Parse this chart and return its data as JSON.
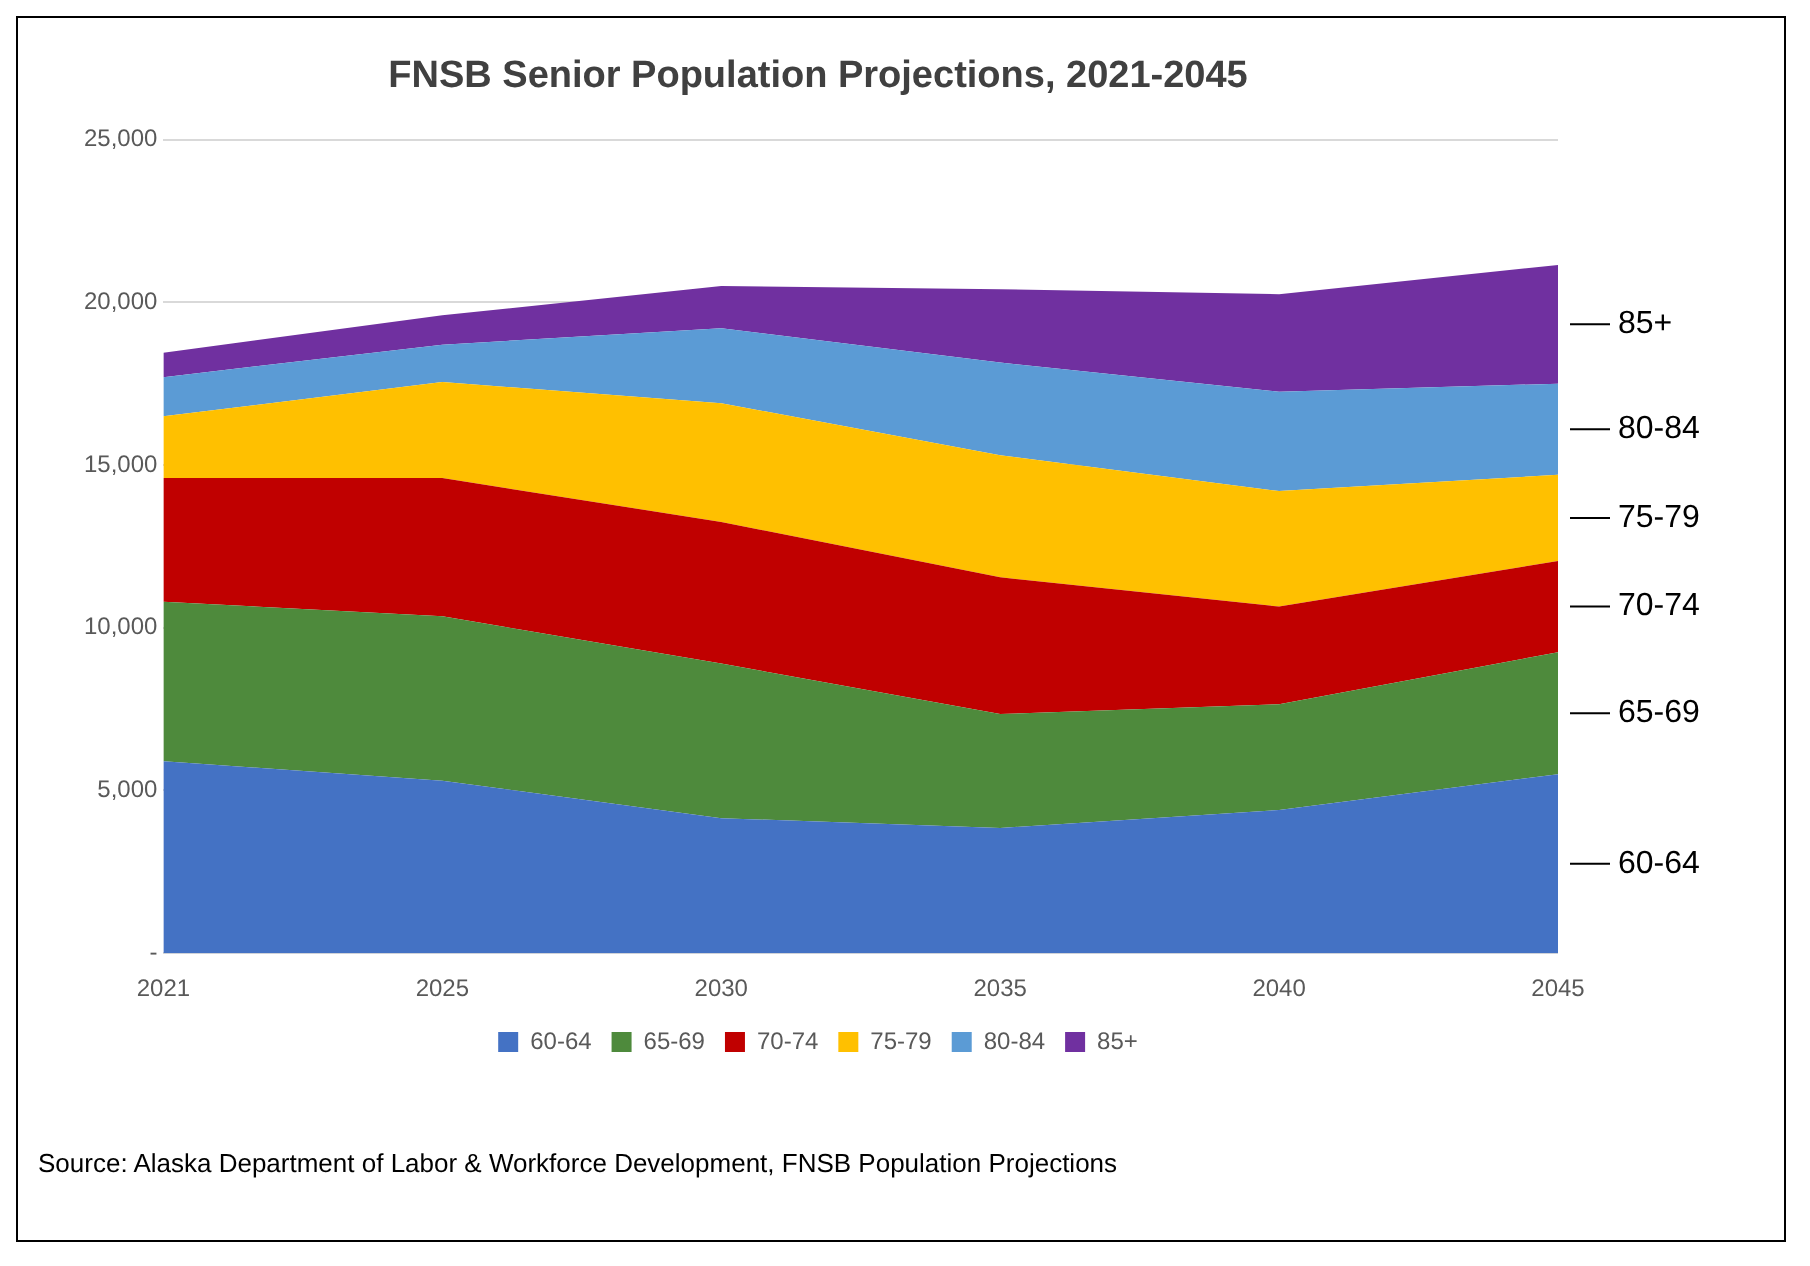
{
  "chart_data": {
    "type": "area",
    "stacked": true,
    "title": "FNSB Senior Population Projections, 2021-2045",
    "categories": [
      "2021",
      "2025",
      "2030",
      "2035",
      "2040",
      "2045"
    ],
    "series": [
      {
        "name": "60-64",
        "color": "#4472c4",
        "values": [
          5900,
          5300,
          4150,
          3850,
          4400,
          5500
        ]
      },
      {
        "name": "65-69",
        "color": "#4e8a3c",
        "values": [
          4900,
          5050,
          4750,
          3500,
          3250,
          3750
        ]
      },
      {
        "name": "70-74",
        "color": "#c00000",
        "values": [
          3800,
          4250,
          4350,
          4200,
          3000,
          2800
        ]
      },
      {
        "name": "75-79",
        "color": "#ffc000",
        "values": [
          1900,
          2950,
          3650,
          3750,
          3550,
          2650
        ]
      },
      {
        "name": "80-84",
        "color": "#5b9bd5",
        "values": [
          1200,
          1150,
          2300,
          2850,
          3050,
          2800
        ]
      },
      {
        "name": "85+",
        "color": "#7030a0",
        "values": [
          750,
          900,
          1300,
          2250,
          3000,
          3650
        ]
      }
    ],
    "ylim": [
      0,
      25000
    ],
    "yticks": [
      {
        "value": 0,
        "label": "-"
      },
      {
        "value": 5000,
        "label": "5,000"
      },
      {
        "value": 10000,
        "label": "10,000"
      },
      {
        "value": 15000,
        "label": "15,000"
      },
      {
        "value": 20000,
        "label": "20,000"
      },
      {
        "value": 25000,
        "label": "25,000"
      }
    ],
    "grid": "y",
    "legend": "bottom",
    "annotations": [
      "Source: Alaska Department of Labor & Workforce Development, FNSB Population Projections"
    ]
  }
}
